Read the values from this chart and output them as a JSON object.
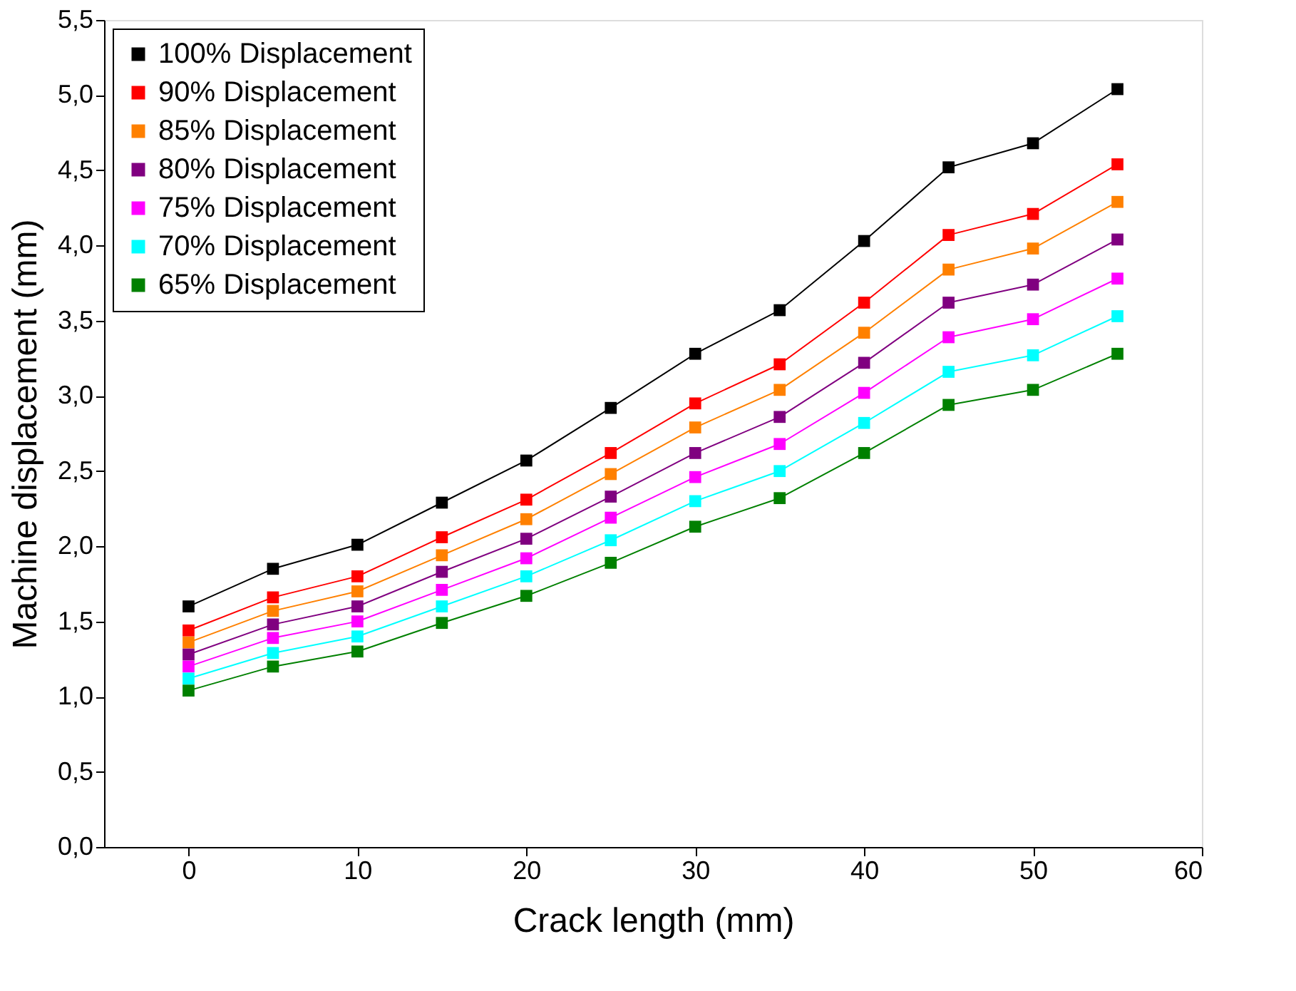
{
  "chart_data": {
    "type": "line",
    "xlabel": "Crack length (mm)",
    "ylabel": "Machine displacement (mm)",
    "x": [
      0,
      5,
      10,
      15,
      20,
      25,
      30,
      35,
      40,
      45,
      50,
      55
    ],
    "series": [
      {
        "name": "100% Displacement",
        "color": "#000000",
        "values": [
          1.6,
          1.85,
          2.01,
          2.29,
          2.57,
          2.92,
          3.28,
          3.57,
          4.03,
          4.52,
          4.68,
          5.04
        ]
      },
      {
        "name": "90% Displacement",
        "color": "#ff0000",
        "values": [
          1.44,
          1.66,
          1.8,
          2.06,
          2.31,
          2.62,
          2.95,
          3.21,
          3.62,
          4.07,
          4.21,
          4.54
        ]
      },
      {
        "name": "85% Displacement",
        "color": "#ff8000",
        "values": [
          1.36,
          1.57,
          1.7,
          1.94,
          2.18,
          2.48,
          2.79,
          3.04,
          3.42,
          3.84,
          3.98,
          4.29
        ]
      },
      {
        "name": "80% Displacement",
        "color": "#800080",
        "values": [
          1.28,
          1.48,
          1.6,
          1.83,
          2.05,
          2.33,
          2.62,
          2.86,
          3.22,
          3.62,
          3.74,
          4.04
        ]
      },
      {
        "name": "75% Displacement",
        "color": "#ff00ff",
        "values": [
          1.2,
          1.39,
          1.5,
          1.71,
          1.92,
          2.19,
          2.46,
          2.68,
          3.02,
          3.39,
          3.51,
          3.78
        ]
      },
      {
        "name": "70% Displacement",
        "color": "#00ffff",
        "values": [
          1.12,
          1.29,
          1.4,
          1.6,
          1.8,
          2.04,
          2.3,
          2.5,
          2.82,
          3.16,
          3.27,
          3.53
        ]
      },
      {
        "name": "65% Displacement",
        "color": "#008000",
        "values": [
          1.04,
          1.2,
          1.3,
          1.49,
          1.67,
          1.89,
          2.13,
          2.32,
          2.62,
          2.94,
          3.04,
          3.28
        ]
      }
    ],
    "xlim": [
      -5,
      60
    ],
    "xticks": [
      0,
      10,
      20,
      30,
      40,
      50,
      60
    ],
    "ylim": [
      0,
      5.5
    ],
    "yticks": [
      {
        "value": 0,
        "label": "0,0"
      },
      {
        "value": 0.5,
        "label": "0,5"
      },
      {
        "value": 1,
        "label": "1,0"
      },
      {
        "value": 1.5,
        "label": "1,5"
      },
      {
        "value": 2,
        "label": "2,0"
      },
      {
        "value": 2.5,
        "label": "2,5"
      },
      {
        "value": 3,
        "label": "3,0"
      },
      {
        "value": 3.5,
        "label": "3,5"
      },
      {
        "value": 4,
        "label": "4,0"
      },
      {
        "value": 4.5,
        "label": "4,5"
      },
      {
        "value": 5,
        "label": "5,0"
      },
      {
        "value": 5.5,
        "label": "5,5"
      }
    ],
    "grid": false,
    "legend": "top left",
    "marker": "square",
    "line_style": "solid"
  }
}
